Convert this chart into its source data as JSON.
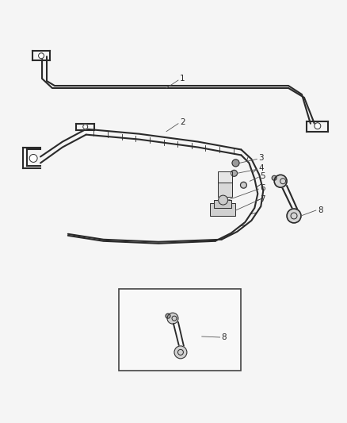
{
  "bg_color": "#f5f5f5",
  "line_color": "#2a2a2a",
  "label_color": "#555555",
  "lw_bar": 1.5,
  "lw_thin": 0.7,
  "lw_leader": 0.6,
  "fig_width": 4.38,
  "fig_height": 5.33,
  "labels": [
    "1",
    "2",
    "3",
    "4",
    "5",
    "6",
    "7",
    "8"
  ],
  "label_fontsize": 7.5,
  "bar_gap": 5
}
